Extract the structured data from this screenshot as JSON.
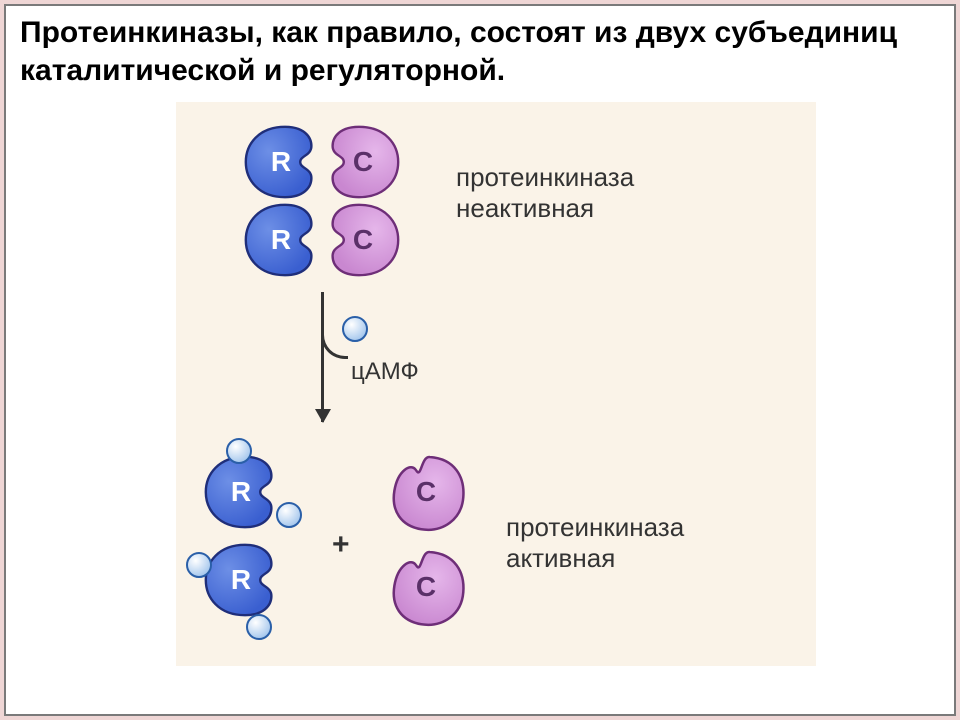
{
  "slide": {
    "bg_color": "#efd6d5",
    "panel_bg": "#ffffff",
    "panel_border": "#7a7a7a",
    "title": "Протеинкиназы, как правило, состоят из двух субъединиц каталитической и регуляторной.",
    "title_fontsize": 30,
    "title_color": "#000000"
  },
  "diagram": {
    "bg_color": "#faf3e8",
    "subunits": {
      "R_label": "R",
      "C_label": "C",
      "R_fill": "#3a5fd0",
      "R_fill_light": "#6d8fe6",
      "R_stroke": "#1f2e7a",
      "C_fill": "#c987d0",
      "C_fill_light": "#e5b6ea",
      "C_stroke": "#6e2e78",
      "label_fontsize": 28,
      "label_color": "#ffffff",
      "C_label_color": "#5a3068"
    },
    "camp": {
      "label": "цАМФ",
      "label_fontsize": 24,
      "fill": "#8db8e8",
      "stroke": "#2a5fa8",
      "d": 22
    },
    "labels": {
      "inactive": "протеинкиназа\nнеактивная",
      "active": "протеинкиназа\nактивная",
      "fontsize": 26,
      "color": "#333333"
    },
    "arrow_color": "#333333",
    "plus": "+",
    "plus_fontsize": 30
  }
}
